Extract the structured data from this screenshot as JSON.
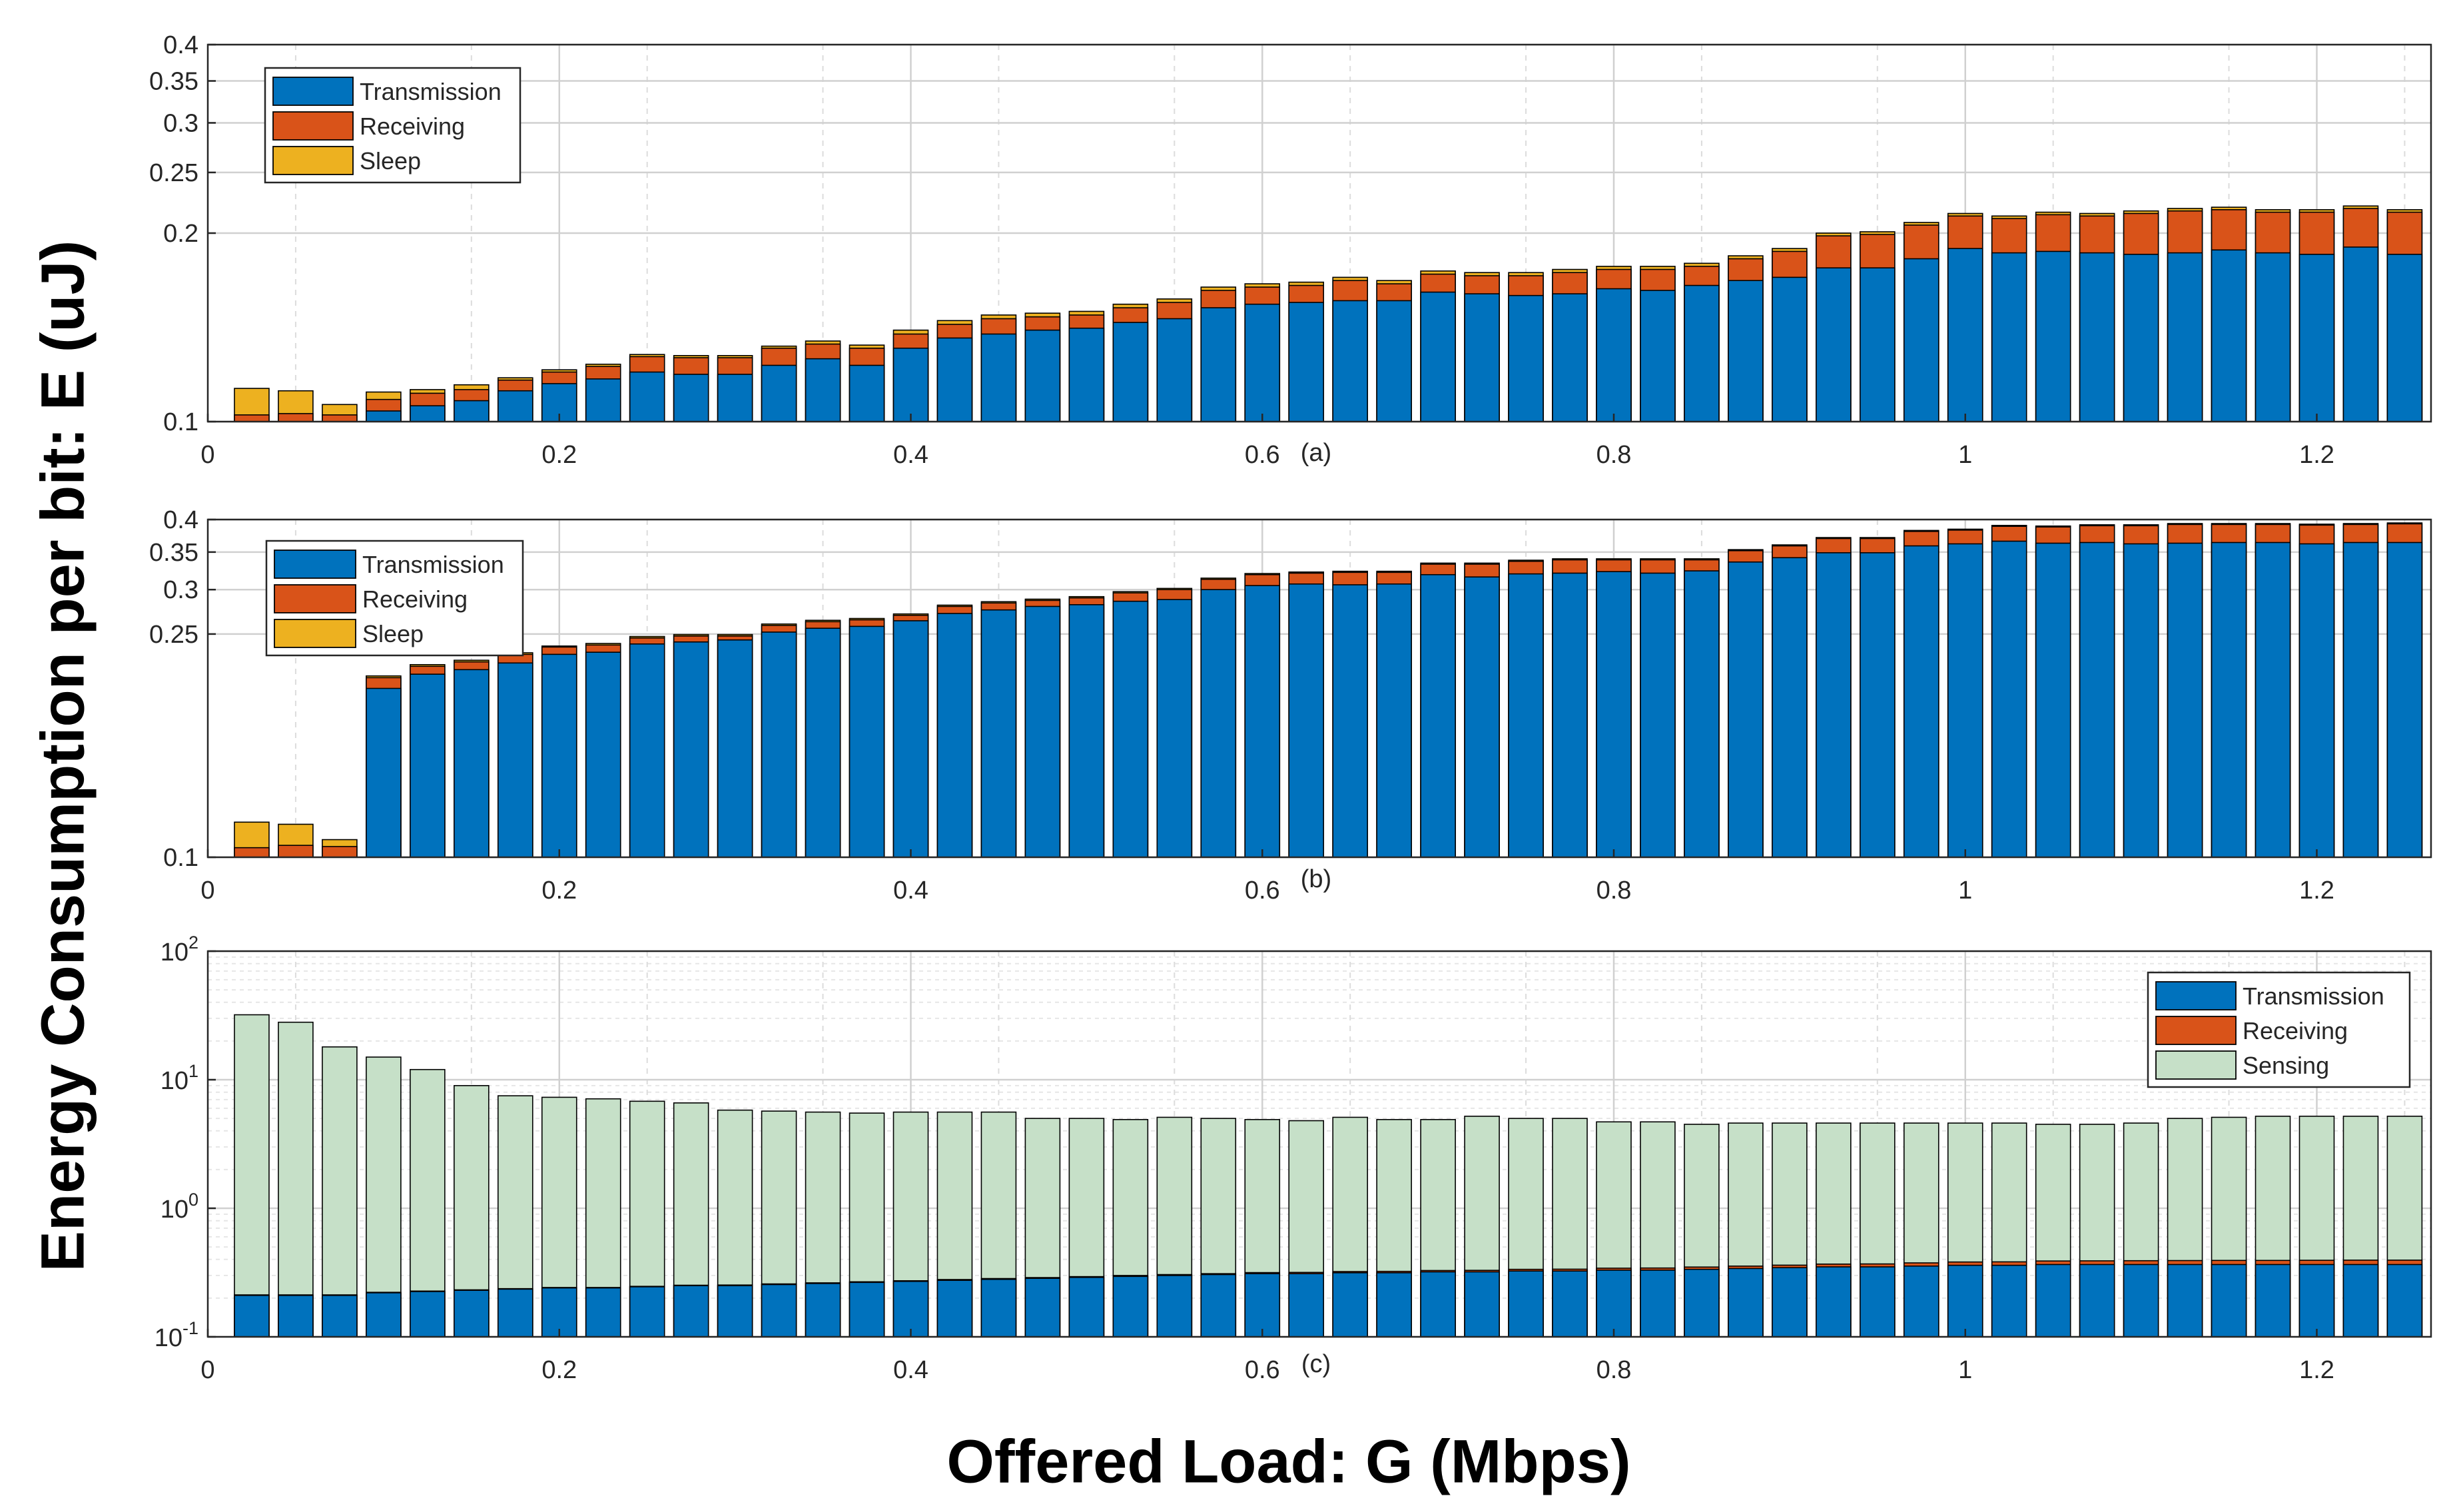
{
  "figure": {
    "ylabel": "Energy Consumption per bit: E (uJ)",
    "xlabel": "Offered Load: G (Mbps)"
  },
  "colors": {
    "transmission": "#0072BD",
    "receiving": "#D95319",
    "sleep": "#EDB120",
    "sensing": "#C6E0C8",
    "grid": "#d0d0d0",
    "edge": "#000000"
  },
  "chart_data": [
    {
      "type": "bar",
      "stacked": true,
      "caption": "(a)",
      "xlim": [
        0,
        1.265
      ],
      "xticks": [
        0,
        0.2,
        0.4,
        0.6,
        0.8,
        1,
        1.2
      ],
      "xtick_labels": [
        "0",
        "0.2",
        "0.4",
        "0.6",
        "0.8",
        "1",
        "1.2"
      ],
      "yscale": "log",
      "ylim": [
        0.1,
        0.4
      ],
      "yticks": [
        0.1,
        0.2,
        0.25,
        0.3,
        0.35,
        0.4
      ],
      "ytick_labels": [
        "0.1",
        "0.2",
        "0.25",
        "0.3",
        "0.35",
        "0.4"
      ],
      "legend_location": "top-left",
      "x": [
        0.025,
        0.05,
        0.075,
        0.1,
        0.125,
        0.15,
        0.175,
        0.2,
        0.225,
        0.25,
        0.275,
        0.3,
        0.325,
        0.35,
        0.375,
        0.4,
        0.425,
        0.45,
        0.475,
        0.5,
        0.525,
        0.55,
        0.575,
        0.6,
        0.625,
        0.65,
        0.675,
        0.7,
        0.725,
        0.75,
        0.775,
        0.8,
        0.825,
        0.85,
        0.875,
        0.9,
        0.925,
        0.95,
        0.975,
        1.0,
        1.025,
        1.05,
        1.075,
        1.1,
        1.125,
        1.15,
        1.175,
        1.2,
        1.225,
        1.25
      ],
      "series": [
        {
          "name": "Transmission",
          "values": [
            0.1,
            0.1,
            0.1,
            0.104,
            0.106,
            0.108,
            0.112,
            0.115,
            0.117,
            0.12,
            0.119,
            0.119,
            0.123,
            0.126,
            0.123,
            0.131,
            0.136,
            0.138,
            0.14,
            0.141,
            0.144,
            0.146,
            0.152,
            0.154,
            0.155,
            0.156,
            0.156,
            0.161,
            0.16,
            0.159,
            0.16,
            0.163,
            0.162,
            0.165,
            0.168,
            0.17,
            0.176,
            0.176,
            0.182,
            0.189,
            0.186,
            0.187,
            0.186,
            0.185,
            0.186,
            0.188,
            0.186,
            0.185,
            0.19,
            0.185
          ]
        },
        {
          "name": "Receiving",
          "values": [
            0.1025,
            0.103,
            0.1025,
            0.1085,
            0.111,
            0.1125,
            0.1165,
            0.12,
            0.1225,
            0.127,
            0.1265,
            0.1265,
            0.131,
            0.133,
            0.131,
            0.138,
            0.143,
            0.146,
            0.147,
            0.148,
            0.152,
            0.155,
            0.162,
            0.164,
            0.165,
            0.168,
            0.166,
            0.172,
            0.171,
            0.171,
            0.173,
            0.175,
            0.175,
            0.177,
            0.182,
            0.187,
            0.198,
            0.199,
            0.206,
            0.213,
            0.211,
            0.214,
            0.213,
            0.215,
            0.217,
            0.218,
            0.216,
            0.216,
            0.219,
            0.216
          ]
        },
        {
          "name": "Sleep",
          "values": [
            0.113,
            0.112,
            0.1065,
            0.1115,
            0.1125,
            0.1145,
            0.1175,
            0.121,
            0.1235,
            0.128,
            0.1275,
            0.1275,
            0.132,
            0.1345,
            0.1325,
            0.14,
            0.145,
            0.148,
            0.149,
            0.15,
            0.154,
            0.157,
            0.164,
            0.166,
            0.167,
            0.17,
            0.168,
            0.174,
            0.173,
            0.173,
            0.175,
            0.177,
            0.177,
            0.179,
            0.184,
            0.189,
            0.2,
            0.201,
            0.208,
            0.215,
            0.213,
            0.216,
            0.215,
            0.217,
            0.219,
            0.22,
            0.218,
            0.218,
            0.221,
            0.218
          ]
        }
      ],
      "legend": [
        "Transmission",
        "Receiving",
        "Sleep"
      ]
    },
    {
      "type": "bar",
      "stacked": true,
      "caption": "(b)",
      "xlim": [
        0,
        1.265
      ],
      "xticks": [
        0,
        0.2,
        0.4,
        0.6,
        0.8,
        1,
        1.2
      ],
      "xtick_labels": [
        "0",
        "0.2",
        "0.4",
        "0.6",
        "0.8",
        "1",
        "1.2"
      ],
      "yscale": "log",
      "ylim": [
        0.1,
        0.4
      ],
      "yticks": [
        0.1,
        0.25,
        0.3,
        0.35,
        0.4
      ],
      "ytick_labels": [
        "0.1",
        "0.25",
        "0.3",
        "0.35",
        "0.4"
      ],
      "legend_location": "top-left",
      "x": [
        0.025,
        0.05,
        0.075,
        0.1,
        0.125,
        0.15,
        0.175,
        0.2,
        0.225,
        0.25,
        0.275,
        0.3,
        0.325,
        0.35,
        0.375,
        0.4,
        0.425,
        0.45,
        0.475,
        0.5,
        0.525,
        0.55,
        0.575,
        0.6,
        0.625,
        0.65,
        0.675,
        0.7,
        0.725,
        0.75,
        0.775,
        0.8,
        0.825,
        0.85,
        0.875,
        0.9,
        0.925,
        0.95,
        0.975,
        1.0,
        1.025,
        1.05,
        1.075,
        1.1,
        1.125,
        1.15,
        1.175,
        1.2,
        1.225,
        1.25
      ],
      "series": [
        {
          "name": "Transmission",
          "values": [
            0.1,
            0.1,
            0.1,
            0.2,
            0.212,
            0.216,
            0.222,
            0.23,
            0.232,
            0.24,
            0.242,
            0.244,
            0.252,
            0.256,
            0.258,
            0.264,
            0.272,
            0.276,
            0.28,
            0.282,
            0.286,
            0.288,
            0.3,
            0.305,
            0.307,
            0.306,
            0.307,
            0.319,
            0.316,
            0.32,
            0.321,
            0.323,
            0.321,
            0.324,
            0.336,
            0.342,
            0.349,
            0.349,
            0.359,
            0.362,
            0.366,
            0.363,
            0.364,
            0.362,
            0.363,
            0.364,
            0.364,
            0.362,
            0.364,
            0.364
          ]
        },
        {
          "name": "Receiving",
          "values": [
            0.104,
            0.105,
            0.1045,
            0.209,
            0.219,
            0.223,
            0.23,
            0.237,
            0.239,
            0.246,
            0.248,
            0.248,
            0.259,
            0.263,
            0.265,
            0.27,
            0.28,
            0.284,
            0.287,
            0.29,
            0.296,
            0.3,
            0.313,
            0.319,
            0.321,
            0.322,
            0.322,
            0.333,
            0.333,
            0.337,
            0.339,
            0.339,
            0.339,
            0.339,
            0.352,
            0.359,
            0.37,
            0.37,
            0.381,
            0.383,
            0.389,
            0.388,
            0.39,
            0.39,
            0.392,
            0.392,
            0.392,
            0.391,
            0.392,
            0.393
          ]
        },
        {
          "name": "Sleep",
          "values": [
            0.1155,
            0.1145,
            0.1075,
            0.2105,
            0.2205,
            0.2245,
            0.2315,
            0.238,
            0.2405,
            0.2475,
            0.2495,
            0.2495,
            0.2605,
            0.2645,
            0.2665,
            0.2715,
            0.2815,
            0.2855,
            0.2885,
            0.2915,
            0.2975,
            0.3015,
            0.3145,
            0.3205,
            0.3225,
            0.3235,
            0.3235,
            0.3345,
            0.3345,
            0.3385,
            0.3405,
            0.3405,
            0.3405,
            0.3405,
            0.3535,
            0.3605,
            0.3715,
            0.3715,
            0.3825,
            0.3845,
            0.3905,
            0.3895,
            0.3915,
            0.3915,
            0.3935,
            0.3935,
            0.3935,
            0.3925,
            0.3935,
            0.3945
          ]
        }
      ],
      "legend": [
        "Transmission",
        "Receiving",
        "Sleep"
      ]
    },
    {
      "type": "bar",
      "stacked": true,
      "caption": "(c)",
      "xlim": [
        0,
        1.265
      ],
      "xticks": [
        0,
        0.2,
        0.4,
        0.6,
        0.8,
        1,
        1.2
      ],
      "xtick_labels": [
        "0",
        "0.2",
        "0.4",
        "0.6",
        "0.8",
        "1",
        "1.2"
      ],
      "yscale": "log",
      "ylim": [
        0.1,
        100
      ],
      "yticks": [
        0.1,
        1,
        10,
        100
      ],
      "ytick_labels": [
        {
          "base": "10",
          "exp": "-1"
        },
        {
          "base": "10",
          "exp": "0"
        },
        {
          "base": "10",
          "exp": "1"
        },
        {
          "base": "10",
          "exp": "2"
        }
      ],
      "legend_location": "top-right",
      "x": [
        0.025,
        0.05,
        0.075,
        0.1,
        0.125,
        0.15,
        0.175,
        0.2,
        0.225,
        0.25,
        0.275,
        0.3,
        0.325,
        0.35,
        0.375,
        0.4,
        0.425,
        0.45,
        0.475,
        0.5,
        0.525,
        0.55,
        0.575,
        0.6,
        0.625,
        0.65,
        0.675,
        0.7,
        0.725,
        0.75,
        0.775,
        0.8,
        0.825,
        0.85,
        0.875,
        0.9,
        0.925,
        0.95,
        0.975,
        1.0,
        1.025,
        1.05,
        1.075,
        1.1,
        1.125,
        1.15,
        1.175,
        1.2,
        1.225,
        1.25
      ],
      "series": [
        {
          "name": "Transmission",
          "values": [
            0.21,
            0.21,
            0.21,
            0.22,
            0.225,
            0.23,
            0.235,
            0.24,
            0.24,
            0.245,
            0.25,
            0.25,
            0.255,
            0.26,
            0.265,
            0.27,
            0.275,
            0.28,
            0.285,
            0.29,
            0.295,
            0.3,
            0.305,
            0.31,
            0.31,
            0.315,
            0.315,
            0.32,
            0.32,
            0.325,
            0.325,
            0.33,
            0.33,
            0.335,
            0.34,
            0.345,
            0.35,
            0.35,
            0.355,
            0.36,
            0.36,
            0.365,
            0.365,
            0.365,
            0.365,
            0.365,
            0.365,
            0.365,
            0.365,
            0.365
          ]
        },
        {
          "name": "Receiving",
          "values": [
            0.212,
            0.212,
            0.212,
            0.222,
            0.227,
            0.232,
            0.237,
            0.242,
            0.242,
            0.247,
            0.252,
            0.253,
            0.258,
            0.263,
            0.268,
            0.273,
            0.279,
            0.284,
            0.289,
            0.294,
            0.3,
            0.305,
            0.31,
            0.316,
            0.317,
            0.322,
            0.323,
            0.328,
            0.329,
            0.335,
            0.336,
            0.342,
            0.343,
            0.349,
            0.355,
            0.361,
            0.368,
            0.369,
            0.376,
            0.382,
            0.383,
            0.389,
            0.39,
            0.391,
            0.392,
            0.393,
            0.393,
            0.394,
            0.395,
            0.395
          ]
        },
        {
          "name": "Sensing",
          "values": [
            32,
            28,
            18,
            15,
            12,
            9,
            7.5,
            7.3,
            7.1,
            6.8,
            6.6,
            5.8,
            5.7,
            5.6,
            5.5,
            5.6,
            5.6,
            5.6,
            5.0,
            5.0,
            4.9,
            5.1,
            5.0,
            4.9,
            4.8,
            5.1,
            4.9,
            4.9,
            5.2,
            5.0,
            5.0,
            4.7,
            4.7,
            4.5,
            4.6,
            4.6,
            4.6,
            4.6,
            4.6,
            4.6,
            4.6,
            4.5,
            4.5,
            4.6,
            5.0,
            5.1,
            5.2,
            5.2,
            5.2,
            5.2
          ]
        }
      ],
      "legend": [
        "Transmission",
        "Receiving",
        "Sensing"
      ]
    }
  ]
}
